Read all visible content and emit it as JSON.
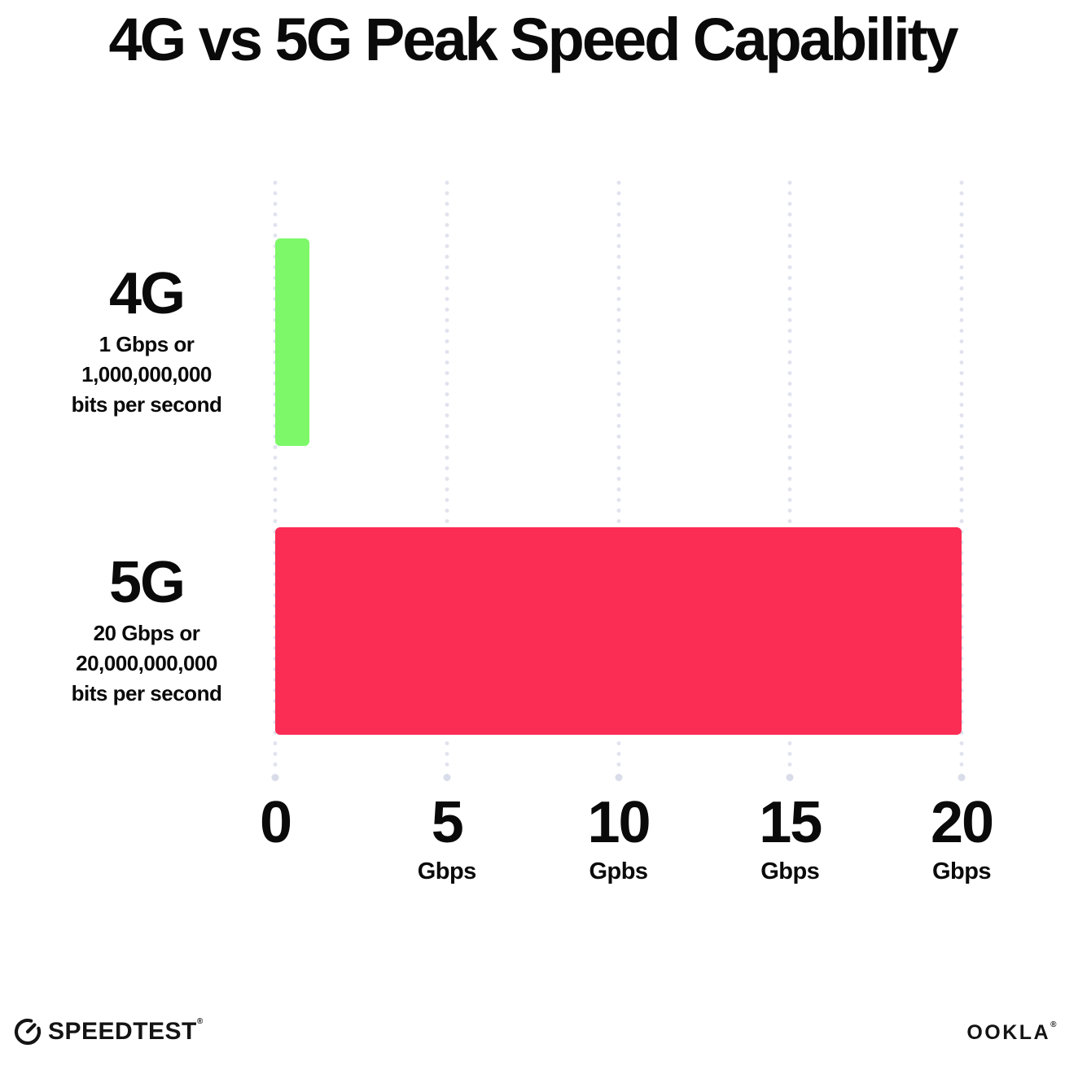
{
  "title": "4G vs 5G Peak Speed Capability",
  "colors": {
    "bar_4g": "#7DF869",
    "bar_5g": "#FB2D55",
    "grid_dot": "#E0E2EE",
    "text": "#0A0A0A",
    "background": "#FFFFFF"
  },
  "chart_data": {
    "type": "bar",
    "orientation": "horizontal",
    "title": "4G vs 5G Peak Speed Capability",
    "categories": [
      "4G",
      "5G"
    ],
    "values": [
      1,
      20
    ],
    "unit": "Gbps",
    "xlim": [
      0,
      20
    ],
    "grid": "vertical-dotted",
    "legend": "none",
    "bars": [
      {
        "name": "4G",
        "value_gbps": 1,
        "color": "#7DF869",
        "description_lines": [
          "1 Gbps or",
          "1,000,000,000",
          "bits per second"
        ]
      },
      {
        "name": "5G",
        "value_gbps": 20,
        "color": "#FB2D55",
        "description_lines": [
          "20 Gbps or",
          "20,000,000,000",
          "bits per second"
        ]
      }
    ],
    "x_ticks": [
      {
        "value": 0,
        "label": "0",
        "unit": ""
      },
      {
        "value": 5,
        "label": "5",
        "unit": "Gbps"
      },
      {
        "value": 10,
        "label": "10",
        "unit": "Gpbs"
      },
      {
        "value": 15,
        "label": "15",
        "unit": "Gbps"
      },
      {
        "value": 20,
        "label": "20",
        "unit": "Gbps"
      }
    ]
  },
  "footer": {
    "speedtest_wordmark": "SPEEDTEST",
    "speedtest_trademark": "®",
    "ookla_wordmark": "OOKLA",
    "ookla_trademark": "®"
  }
}
